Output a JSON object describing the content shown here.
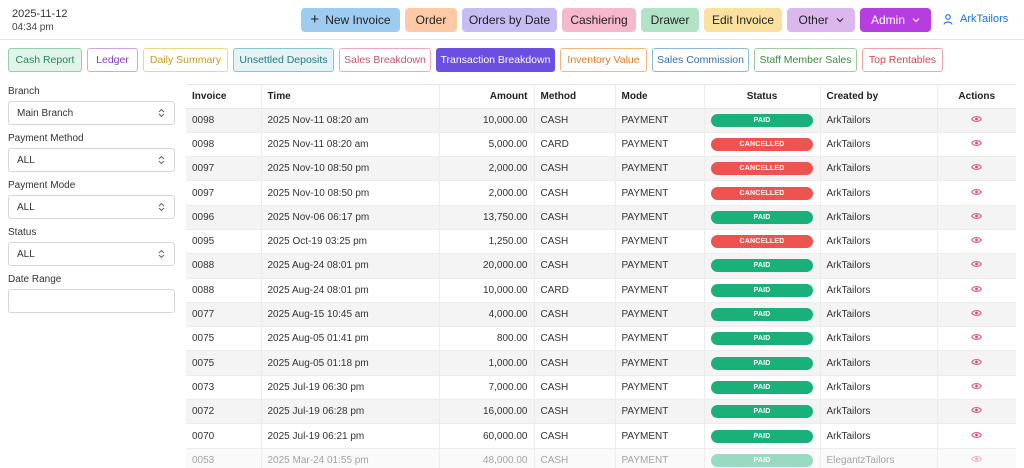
{
  "header": {
    "date": "2025-11-12",
    "time": "04:34 pm",
    "nav": [
      {
        "label": "New Invoice",
        "icon": "plus-icon",
        "bg": "#9ecbf0",
        "w": 99
      },
      {
        "label": "Order",
        "bg": "#fdc9a6",
        "w": 52
      },
      {
        "label": "Orders by Date",
        "bg": "#c7bdf2",
        "w": 95
      },
      {
        "label": "Cashiering",
        "bg": "#f6b8cd",
        "w": 74
      },
      {
        "label": "Drawer",
        "bg": "#b3e3c6",
        "w": 58
      },
      {
        "label": "Edit Invoice",
        "bg": "#fbe1a0",
        "w": 78
      },
      {
        "label": "Other",
        "bg": "#dbb7ee",
        "w": 68,
        "caret": true
      },
      {
        "label": "Admin",
        "bg": "#b63ee0",
        "w": 71,
        "caret": true,
        "text_color": "#ffffff"
      }
    ],
    "user": "ArkTailors"
  },
  "report_tabs": [
    {
      "label": "Cash Report",
      "color": "#1e8a52",
      "bg": "#e3f5ea",
      "border": "#8fd1aa",
      "w": 74
    },
    {
      "label": "Ledger",
      "color": "#8a3fbf",
      "bg": "#ffffff",
      "border": "#cfa6e8",
      "w": 51
    },
    {
      "label": "Daily Summary",
      "color": "#c89a1a",
      "bg": "#ffffff",
      "border": "#f0d58a",
      "w": 85
    },
    {
      "label": "Unsettled Deposits",
      "color": "#1f7a86",
      "bg": "#e4f3f6",
      "border": "#86c5cf",
      "w": 101
    },
    {
      "label": "Sales Breakdown",
      "color": "#c2556f",
      "bg": "#ffffff",
      "border": "#f0a9bb",
      "w": 92
    },
    {
      "label": "Transaction Breakdown",
      "color": "#ffffff",
      "bg": "#6a4fe0",
      "border": "#6a4fe0",
      "w": 119,
      "active": true
    },
    {
      "label": "Inventory Value",
      "color": "#e07a1f",
      "bg": "#ffffff",
      "border": "#f3b67c",
      "w": 87
    },
    {
      "label": "Sales Commission",
      "color": "#2f6fb5",
      "bg": "#ffffff",
      "border": "#8fb9e3",
      "w": 97
    },
    {
      "label": "Staff Member Sales",
      "color": "#3f8a3f",
      "bg": "#ffffff",
      "border": "#9ccf9c",
      "w": 103
    },
    {
      "label": "Top Rentables",
      "color": "#d34848",
      "bg": "#ffffff",
      "border": "#f0a5a5",
      "w": 81
    }
  ],
  "filters": {
    "branch_label": "Branch",
    "branch_value": "Main Branch",
    "method_label": "Payment Method",
    "method_value": "ALL",
    "mode_label": "Payment Mode",
    "mode_value": "ALL",
    "status_label": "Status",
    "status_value": "ALL",
    "date_label": "Date Range",
    "date_value": ""
  },
  "table": {
    "columns": [
      "Invoice",
      "Time",
      "Amount",
      "Method",
      "Mode",
      "Status",
      "Created by",
      "Actions"
    ],
    "rows": [
      {
        "invoice": "0098",
        "time": "2025 Nov-11 08:20 am",
        "amount": "10,000.00",
        "method": "CASH",
        "mode": "PAYMENT",
        "status": "PAID",
        "created_by": "ArkTailors"
      },
      {
        "invoice": "0098",
        "time": "2025 Nov-11 08:20 am",
        "amount": "5,000.00",
        "method": "CARD",
        "mode": "PAYMENT",
        "status": "CANCELLED",
        "created_by": "ArkTailors"
      },
      {
        "invoice": "0097",
        "time": "2025 Nov-10 08:50 pm",
        "amount": "2,000.00",
        "method": "CASH",
        "mode": "PAYMENT",
        "status": "CANCELLED",
        "created_by": "ArkTailors"
      },
      {
        "invoice": "0097",
        "time": "2025 Nov-10 08:50 pm",
        "amount": "2,000.00",
        "method": "CASH",
        "mode": "PAYMENT",
        "status": "CANCELLED",
        "created_by": "ArkTailors"
      },
      {
        "invoice": "0096",
        "time": "2025 Nov-06 06:17 pm",
        "amount": "13,750.00",
        "method": "CASH",
        "mode": "PAYMENT",
        "status": "PAID",
        "created_by": "ArkTailors"
      },
      {
        "invoice": "0095",
        "time": "2025 Oct-19 03:25 pm",
        "amount": "1,250.00",
        "method": "CASH",
        "mode": "PAYMENT",
        "status": "CANCELLED",
        "created_by": "ArkTailors"
      },
      {
        "invoice": "0088",
        "time": "2025 Aug-24 08:01 pm",
        "amount": "20,000.00",
        "method": "CASH",
        "mode": "PAYMENT",
        "status": "PAID",
        "created_by": "ArkTailors"
      },
      {
        "invoice": "0088",
        "time": "2025 Aug-24 08:01 pm",
        "amount": "10,000.00",
        "method": "CARD",
        "mode": "PAYMENT",
        "status": "PAID",
        "created_by": "ArkTailors"
      },
      {
        "invoice": "0077",
        "time": "2025 Aug-15 10:45 am",
        "amount": "4,000.00",
        "method": "CASH",
        "mode": "PAYMENT",
        "status": "PAID",
        "created_by": "ArkTailors"
      },
      {
        "invoice": "0075",
        "time": "2025 Aug-05 01:41 pm",
        "amount": "800.00",
        "method": "CASH",
        "mode": "PAYMENT",
        "status": "PAID",
        "created_by": "ArkTailors"
      },
      {
        "invoice": "0075",
        "time": "2025 Aug-05 01:18 pm",
        "amount": "1,000.00",
        "method": "CASH",
        "mode": "PAYMENT",
        "status": "PAID",
        "created_by": "ArkTailors"
      },
      {
        "invoice": "0073",
        "time": "2025 Jul-19 06:30 pm",
        "amount": "7,000.00",
        "method": "CASH",
        "mode": "PAYMENT",
        "status": "PAID",
        "created_by": "ArkTailors"
      },
      {
        "invoice": "0072",
        "time": "2025 Jul-19 06:28 pm",
        "amount": "16,000.00",
        "method": "CASH",
        "mode": "PAYMENT",
        "status": "PAID",
        "created_by": "ArkTailors"
      },
      {
        "invoice": "0070",
        "time": "2025 Jul-19 06:21 pm",
        "amount": "60,000.00",
        "method": "CASH",
        "mode": "PAYMENT",
        "status": "PAID",
        "created_by": "ArkTailors"
      },
      {
        "invoice": "0053",
        "time": "2025 Mar-24 01:55 pm",
        "amount": "48,000.00",
        "method": "CASH",
        "mode": "PAYMENT",
        "status": "PAID",
        "created_by": "ElegantzTailors"
      }
    ]
  },
  "colors": {
    "paid": "#1ab07a",
    "cancelled": "#ef5350",
    "action_icon": "#e0487a",
    "link": "#1a73d9"
  }
}
